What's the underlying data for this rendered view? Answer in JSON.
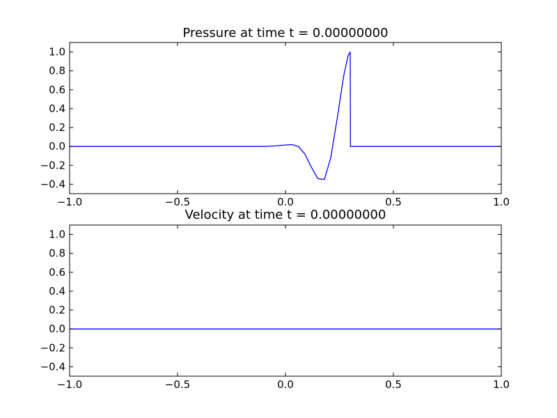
{
  "chart_data": [
    {
      "type": "line",
      "title": "Pressure at time t =     0.00000000",
      "xlim": [
        -1.0,
        1.0
      ],
      "ylim": [
        -0.5,
        1.1
      ],
      "xticks": [
        -1.0,
        -0.5,
        0.0,
        0.5,
        1.0
      ],
      "xtick_labels": [
        "−1.0",
        "−0.5",
        "0.0",
        "0.5",
        "1.0"
      ],
      "yticks": [
        -0.4,
        -0.2,
        0.0,
        0.2,
        0.4,
        0.6,
        0.8,
        1.0
      ],
      "ytick_labels": [
        "−0.4",
        "−0.2",
        "0.0",
        "0.2",
        "0.4",
        "0.6",
        "0.8",
        "1.0"
      ],
      "grid": false,
      "color": "#0000ff",
      "x": [
        -1.0,
        -0.1,
        -0.05,
        0.0,
        0.03,
        0.06,
        0.09,
        0.12,
        0.15,
        0.18,
        0.21,
        0.24,
        0.27,
        0.29,
        0.3,
        0.301,
        0.5,
        1.0
      ],
      "y": [
        0.0,
        0.0,
        0.005,
        0.015,
        0.02,
        0.0,
        -0.08,
        -0.22,
        -0.34,
        -0.35,
        -0.12,
        0.3,
        0.75,
        0.96,
        1.0,
        0.0,
        0.0,
        0.0
      ]
    },
    {
      "type": "line",
      "title": "Velocity at time t =     0.00000000",
      "xlim": [
        -1.0,
        1.0
      ],
      "ylim": [
        -0.5,
        1.1
      ],
      "xticks": [
        -1.0,
        -0.5,
        0.0,
        0.5,
        1.0
      ],
      "xtick_labels": [
        "−1.0",
        "−0.5",
        "0.0",
        "0.5",
        "1.0"
      ],
      "yticks": [
        -0.4,
        -0.2,
        0.0,
        0.2,
        0.4,
        0.6,
        0.8,
        1.0
      ],
      "ytick_labels": [
        "−0.4",
        "−0.2",
        "0.0",
        "0.2",
        "0.4",
        "0.6",
        "0.8",
        "1.0"
      ],
      "grid": false,
      "color": "#0000ff",
      "x": [
        -1.0,
        1.0
      ],
      "y": [
        0.0,
        0.0
      ]
    }
  ]
}
